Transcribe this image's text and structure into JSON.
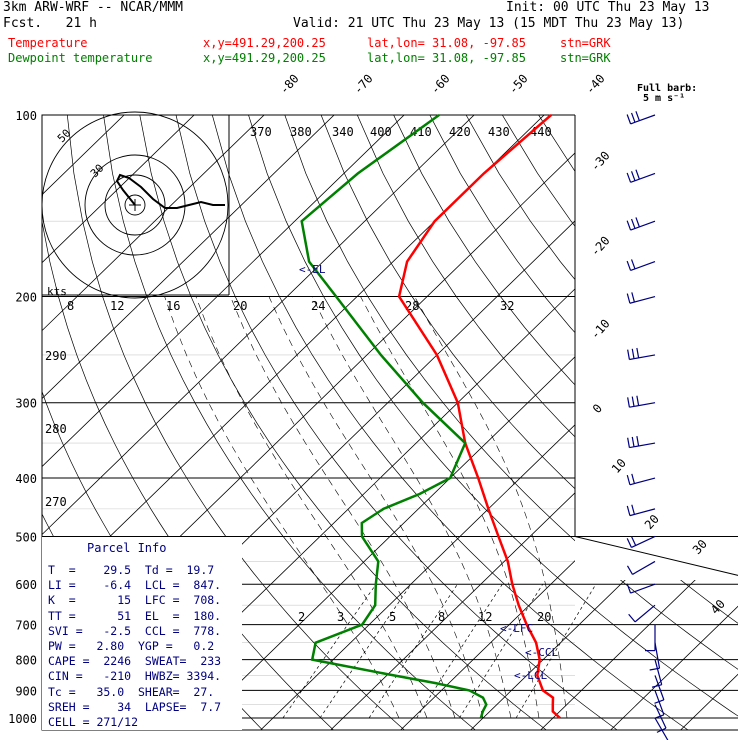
{
  "header": {
    "model": "3km ARW-WRF -- NCAR/MMM",
    "init": "Init: 00 UTC Thu 23 May 13",
    "fcst": "Fcst.   21 h",
    "valid": "Valid: 21 UTC Thu 23 May 13 (15 MDT Thu 23 May 13)",
    "temp_line": {
      "label": "Temperature",
      "xy": "x,y=491.29,200.25",
      "latlon": "lat,lon= 31.08, -97.85",
      "stn": "stn=GRK"
    },
    "dew_line": {
      "label": "Dewpoint temperature",
      "xy": "x,y=491.29,200.25",
      "latlon": "lat,lon= 31.08, -97.85",
      "stn": "stn=GRK"
    }
  },
  "colors": {
    "temperature": "#ff0000",
    "dewpoint": "#008000",
    "parcel_label": "#000080",
    "barbs": "#000080",
    "grid": "#000000"
  },
  "barb_key": {
    "line1": "Full barb:",
    "line2": "5 m s⁻¹"
  },
  "hodograph": {
    "units": "kts",
    "ring_labels": [
      "50",
      "30"
    ]
  },
  "parcel_info": {
    "title": "Parcel Info",
    "rows": [
      "T  =    29.5  Td =  19.7",
      "LI =    -6.4  LCL =  847.",
      "K  =      15  LFC =  708.",
      "TT =      51  EL  =  180.",
      "SVI =   -2.5  CCL =  778.",
      "PW =   2.80  YGP =   0.2",
      "CAPE =  2246  SWEAT=  233",
      "CIN =   -210  HWBZ= 3394.",
      "Tc =   35.0  SHEAR=  27.",
      "SREH =    34  LAPSE=  7.7",
      "CELL = 271/12"
    ]
  },
  "level_labels": {
    "lfc": "<-LFC",
    "ccl": "<-CCL",
    "lcl": "<-LCL",
    "el": "<-EL"
  },
  "chart_data": {
    "type": "line",
    "title": "3km ARW-WRF -- NCAR/MMM",
    "yscale": "log-pressure",
    "pressure_ticks_hPa": [
      100,
      200,
      300,
      400,
      500,
      600,
      700,
      800,
      900,
      1000
    ],
    "isotherm_labels_C": [
      "-80",
      "-70",
      "-60",
      "-50",
      "-40",
      "-30",
      "-20",
      "-10",
      "0",
      "10",
      "20",
      "30",
      "40"
    ],
    "dry_adiabat_labels_K": [
      "370",
      "380",
      "340",
      "400",
      "410",
      "420",
      "430",
      "440",
      "290",
      "280",
      "270"
    ],
    "mixing_ratio_labels_gkg": [
      "2",
      "3",
      "5",
      "8",
      "12",
      "20"
    ],
    "upper_mixing_labels": [
      "8",
      "12",
      "16",
      "20",
      "24",
      "28",
      "32"
    ],
    "series": [
      {
        "name": "Temperature",
        "pressure": [
          1000,
          975,
          950,
          925,
          900,
          850,
          800,
          750,
          700,
          650,
          600,
          550,
          500,
          450,
          400,
          350,
          300,
          250,
          200,
          175,
          150,
          125,
          100
        ],
        "temperature_C": [
          31,
          29,
          28,
          27,
          24.5,
          21.5,
          19.5,
          16.5,
          12.5,
          8.5,
          4.5,
          0.5,
          -4.5,
          -10,
          -16,
          -23,
          -30,
          -40,
          -54,
          -58,
          -60,
          -60,
          -59
        ]
      },
      {
        "name": "Dewpoint temperature",
        "pressure": [
          1000,
          975,
          950,
          925,
          900,
          875,
          850,
          800,
          750,
          700,
          650,
          600,
          550,
          500,
          475,
          450,
          425,
          400,
          350,
          300,
          250,
          200,
          175,
          150,
          125,
          100
        ],
        "dewpoint_C": [
          19.7,
          19,
          18.5,
          17,
          14,
          8,
          1,
          -13,
          -15,
          -11,
          -12,
          -15,
          -18,
          -24,
          -26,
          -25,
          -22,
          -20,
          -23,
          -35,
          -48,
          -63,
          -72,
          -79,
          -78,
          -75
        ]
      }
    ],
    "hodograph_trace_kts": [
      [
        0,
        0
      ],
      [
        -4,
        5
      ],
      [
        -6,
        8
      ],
      [
        -5,
        10
      ],
      [
        -2,
        9
      ],
      [
        2,
        6
      ],
      [
        6,
        2
      ],
      [
        10,
        -1
      ],
      [
        14,
        -1
      ],
      [
        18,
        0
      ],
      [
        22,
        1
      ],
      [
        26,
        0
      ],
      [
        30,
        0
      ]
    ],
    "wind_barbs": [
      {
        "p": 100,
        "dir": 250,
        "spd_ms": 15
      },
      {
        "p": 125,
        "dir": 250,
        "spd_ms": 15
      },
      {
        "p": 150,
        "dir": 250,
        "spd_ms": 15
      },
      {
        "p": 175,
        "dir": 250,
        "spd_ms": 12
      },
      {
        "p": 200,
        "dir": 255,
        "spd_ms": 12
      },
      {
        "p": 250,
        "dir": 260,
        "spd_ms": 15
      },
      {
        "p": 300,
        "dir": 260,
        "spd_ms": 15
      },
      {
        "p": 350,
        "dir": 260,
        "spd_ms": 15
      },
      {
        "p": 400,
        "dir": 255,
        "spd_ms": 12
      },
      {
        "p": 450,
        "dir": 255,
        "spd_ms": 10
      },
      {
        "p": 500,
        "dir": 245,
        "spd_ms": 10
      },
      {
        "p": 550,
        "dir": 240,
        "spd_ms": 7
      },
      {
        "p": 600,
        "dir": 250,
        "spd_ms": 5
      },
      {
        "p": 650,
        "dir": 230,
        "spd_ms": 5
      },
      {
        "p": 700,
        "dir": 180,
        "spd_ms": 5
      },
      {
        "p": 750,
        "dir": 170,
        "spd_ms": 7
      },
      {
        "p": 800,
        "dir": 165,
        "spd_ms": 7
      },
      {
        "p": 850,
        "dir": 160,
        "spd_ms": 7
      },
      {
        "p": 900,
        "dir": 160,
        "spd_ms": 7
      },
      {
        "p": 950,
        "dir": 155,
        "spd_ms": 5
      },
      {
        "p": 1000,
        "dir": 150,
        "spd_ms": 5
      }
    ]
  }
}
